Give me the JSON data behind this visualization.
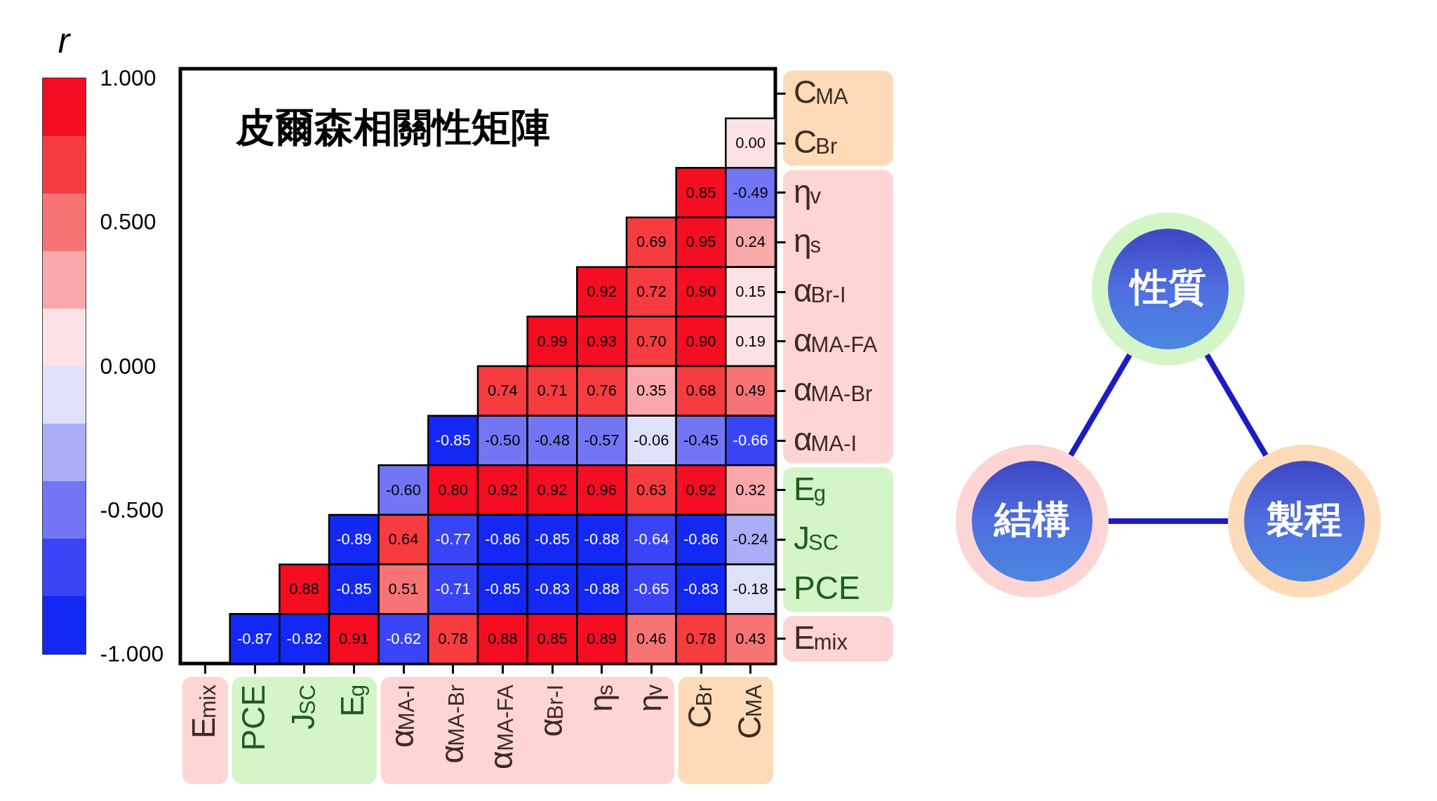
{
  "chart_data": {
    "type": "heatmap",
    "title": "皮爾森相關性矩陣",
    "clabel": "r",
    "categories": [
      "E$_{mix}$",
      "PCE",
      "J$_{SC}$",
      "E$_{g}$",
      "α$_{MA-I}$",
      "α$_{MA-Br}$",
      "α$_{MA-FA}$",
      "α$_{Br-I}$",
      "η$_{s}$",
      "η$_{v}$",
      "C$_{Br}$",
      "C$_{MA}$"
    ],
    "y_categories": [
      "C$_{MA}$",
      "C$_{Br}$",
      "η$_{v}$",
      "η$_{s}$",
      "α$_{Br-I}$",
      "α$_{MA-FA}$",
      "α$_{MA-Br}$",
      "α$_{MA-I}$",
      "E$_{g}$",
      "J$_{SC}$",
      "PCE",
      "E$_{mix}$"
    ],
    "cells": [
      [
        null,
        null,
        null,
        null,
        null,
        null,
        null,
        null,
        null,
        null,
        null,
        null
      ],
      [
        null,
        null,
        null,
        null,
        null,
        null,
        null,
        null,
        null,
        null,
        null,
        0.0
      ],
      [
        null,
        null,
        null,
        null,
        null,
        null,
        null,
        null,
        null,
        null,
        0.85,
        -0.49
      ],
      [
        null,
        null,
        null,
        null,
        null,
        null,
        null,
        null,
        null,
        0.69,
        0.95,
        0.24
      ],
      [
        null,
        null,
        null,
        null,
        null,
        null,
        null,
        null,
        0.92,
        0.72,
        0.9,
        0.15
      ],
      [
        null,
        null,
        null,
        null,
        null,
        null,
        null,
        0.99,
        0.93,
        0.7,
        0.9,
        0.19
      ],
      [
        null,
        null,
        null,
        null,
        null,
        null,
        0.74,
        0.71,
        0.76,
        0.35,
        0.68,
        0.49
      ],
      [
        null,
        null,
        null,
        null,
        null,
        -0.85,
        -0.5,
        -0.48,
        -0.57,
        -0.06,
        -0.45,
        -0.66
      ],
      [
        null,
        null,
        null,
        null,
        -0.6,
        0.8,
        0.92,
        0.92,
        0.96,
        0.63,
        0.92,
        0.32
      ],
      [
        null,
        null,
        null,
        -0.89,
        0.64,
        -0.77,
        -0.86,
        -0.85,
        -0.88,
        -0.64,
        -0.86,
        -0.24
      ],
      [
        null,
        null,
        0.88,
        -0.85,
        0.51,
        -0.71,
        -0.85,
        -0.83,
        -0.88,
        -0.65,
        -0.83,
        -0.18
      ],
      [
        null,
        -0.87,
        -0.82,
        0.91,
        -0.62,
        0.78,
        0.88,
        0.85,
        0.89,
        0.46,
        0.78,
        0.43
      ]
    ],
    "cell_labels": [
      [
        null,
        null,
        null,
        null,
        null,
        null,
        null,
        null,
        null,
        null,
        null,
        null
      ],
      [
        null,
        null,
        null,
        null,
        null,
        null,
        null,
        null,
        null,
        null,
        null,
        "0.00"
      ],
      [
        null,
        null,
        null,
        null,
        null,
        null,
        null,
        null,
        null,
        null,
        "0.85",
        "-0.49"
      ],
      [
        null,
        null,
        null,
        null,
        null,
        null,
        null,
        null,
        null,
        "0.69",
        "0.95",
        "0.24"
      ],
      [
        null,
        null,
        null,
        null,
        null,
        null,
        null,
        null,
        "0.92",
        "0.72",
        "0.90",
        "0.15"
      ],
      [
        null,
        null,
        null,
        null,
        null,
        null,
        null,
        "0.99",
        "0.93",
        "0.70",
        "0.90",
        "0.19"
      ],
      [
        null,
        null,
        null,
        null,
        null,
        null,
        "0.74",
        "0.71",
        "0.76",
        "0.35",
        "0.68",
        "0.49"
      ],
      [
        null,
        null,
        null,
        null,
        null,
        "-0.85",
        "-0.50",
        "-0.48",
        "-0.57",
        "-0.06",
        "-0.45",
        "-0.66"
      ],
      [
        null,
        null,
        null,
        null,
        "-0.60",
        "0.80",
        "0.92",
        "0.92",
        "0.96",
        "0.63",
        "0.92",
        "0.32"
      ],
      [
        null,
        null,
        null,
        "-0.89",
        "0.64",
        "-0.77",
        "-0.86",
        "-0.85",
        "-0.88",
        "-0.64",
        "-0.86",
        "-0.24"
      ],
      [
        null,
        null,
        "0.88",
        "-0.85",
        "0.51",
        "-0.71",
        "-0.85",
        "-0.83",
        "-0.88",
        "-0.65",
        "-0.83",
        "-0.18"
      ],
      [
        null,
        "-0.87",
        "-0.82",
        "0.91",
        "-0.62",
        "0.78",
        "0.88",
        "0.85",
        "0.89",
        "0.46",
        "0.78",
        "0.43"
      ]
    ],
    "clim": [
      -1,
      1
    ],
    "cticks": [
      {
        "value": -1,
        "label": "-1.000"
      },
      {
        "value": -0.5,
        "label": "-0.500"
      },
      {
        "value": 0,
        "label": "0.000"
      },
      {
        "value": 0.5,
        "label": "0.500"
      },
      {
        "value": 1,
        "label": "1.000"
      }
    ],
    "colors": [
      "#1428f5",
      "#3a44f7",
      "#7276f5",
      "#a9aef7",
      "#dfe1f8",
      "#fde2e5",
      "#f9a9aa",
      "#f87474",
      "#f73c40",
      "#f50d22"
    ],
    "annotations": [
      "性質",
      "結構",
      "製程"
    ]
  }
}
